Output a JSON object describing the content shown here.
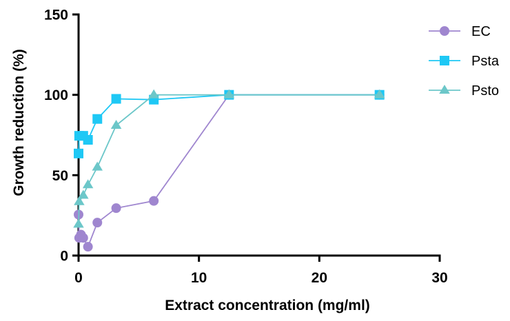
{
  "chart_data": {
    "type": "line",
    "title": "",
    "xlabel": "Extract concentration (mg/ml)",
    "ylabel": "Growth reduction (%)",
    "xlim": [
      0,
      30
    ],
    "ylim": [
      0,
      150
    ],
    "xticks": [
      0,
      10,
      20,
      30
    ],
    "yticks": [
      0,
      50,
      100,
      150
    ],
    "xtick_labels": [
      "0",
      "10",
      "20",
      "30"
    ],
    "ytick_labels": [
      "0",
      "50",
      "100",
      "150"
    ],
    "grid": false,
    "legend_position": "top-right",
    "series": [
      {
        "name": "EC",
        "marker": "circle",
        "color": "#9f86cf",
        "points": [
          {
            "x": 0.0,
            "y": 25.5
          },
          {
            "x": 0.05,
            "y": 11.0
          },
          {
            "x": 0.2,
            "y": 13.0
          },
          {
            "x": 0.39,
            "y": 11.0
          },
          {
            "x": 0.78,
            "y": 5.5
          },
          {
            "x": 1.56,
            "y": 20.5
          },
          {
            "x": 3.125,
            "y": 29.5
          },
          {
            "x": 6.25,
            "y": 34.0
          },
          {
            "x": 12.5,
            "y": 100.0
          },
          {
            "x": 25.0,
            "y": 100.0
          }
        ]
      },
      {
        "name": "Psta",
        "marker": "square",
        "color": "#1ec8f5",
        "points": [
          {
            "x": 0.0,
            "y": 63.5
          },
          {
            "x": 0.05,
            "y": 74.5
          },
          {
            "x": 0.39,
            "y": 74.5
          },
          {
            "x": 0.78,
            "y": 72.0
          },
          {
            "x": 1.56,
            "y": 85.0
          },
          {
            "x": 3.125,
            "y": 97.5
          },
          {
            "x": 6.25,
            "y": 97.0
          },
          {
            "x": 12.5,
            "y": 100.0
          },
          {
            "x": 25.0,
            "y": 100.0
          }
        ]
      },
      {
        "name": "Psto",
        "marker": "triangle",
        "color": "#6cc7c9",
        "points": [
          {
            "x": 0.0,
            "y": 19.5
          },
          {
            "x": 0.05,
            "y": 33.5
          },
          {
            "x": 0.39,
            "y": 37.5
          },
          {
            "x": 0.78,
            "y": 44.0
          },
          {
            "x": 1.56,
            "y": 55.0
          },
          {
            "x": 3.125,
            "y": 81.0
          },
          {
            "x": 6.25,
            "y": 100.0
          },
          {
            "x": 12.5,
            "y": 100.0
          },
          {
            "x": 25.0,
            "y": 100.0
          }
        ]
      }
    ]
  }
}
